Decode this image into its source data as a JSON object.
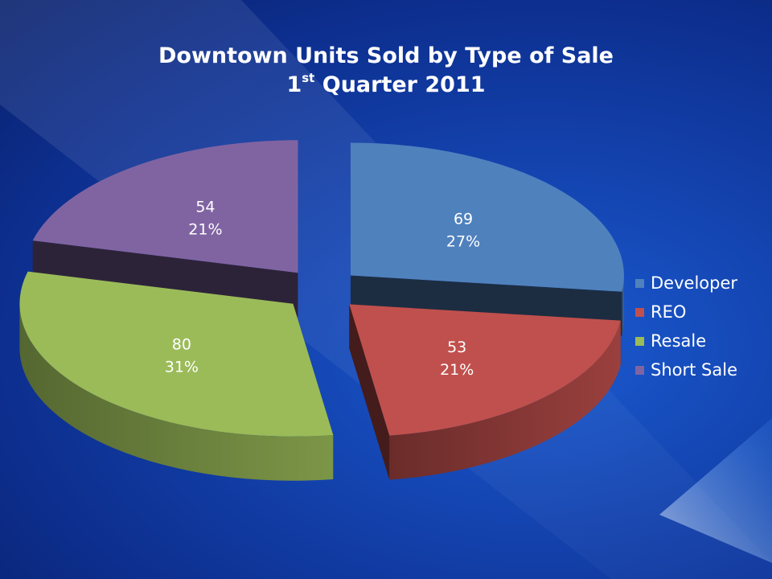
{
  "chart_data": {
    "type": "pie",
    "title_line1": "Downtown Units Sold by Type of Sale",
    "title_line2": {
      "pre": "1",
      "sup": "st",
      "post": " Quarter 2011"
    },
    "legend_position": "right",
    "slices": [
      {
        "name": "Developer",
        "value": 69,
        "percent": "27%",
        "color": "#4f81bd"
      },
      {
        "name": "REO",
        "value": 53,
        "percent": "21%",
        "color": "#c0504d"
      },
      {
        "name": "Resale",
        "value": 80,
        "percent": "31%",
        "color": "#9bbb59"
      },
      {
        "name": "Short Sale",
        "value": 54,
        "percent": "21%",
        "color": "#8064a2"
      }
    ]
  }
}
